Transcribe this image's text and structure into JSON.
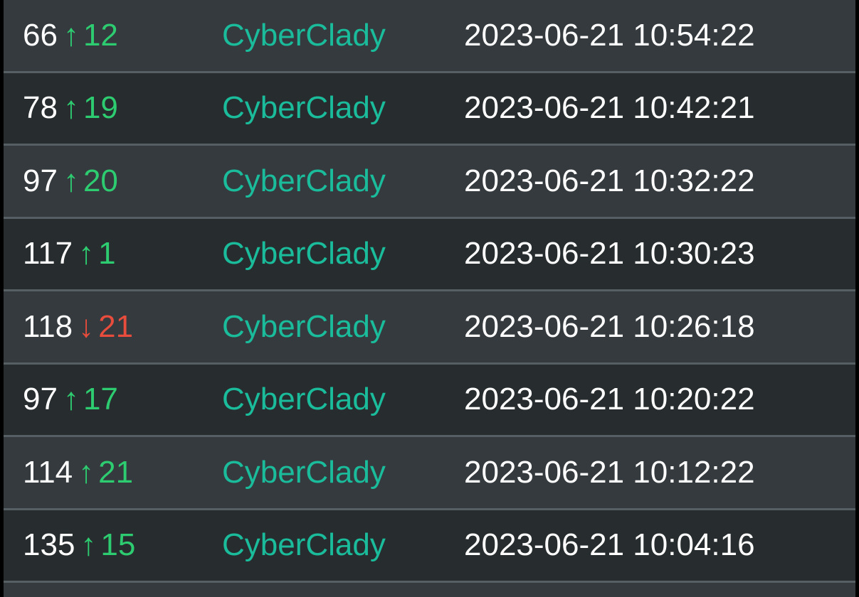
{
  "colors": {
    "up": "#2ecc71",
    "down": "#e74c3c",
    "name": "#1abc9c",
    "row_light": "#343a3d",
    "row_dark": "#272d2e"
  },
  "rows": [
    {
      "score": "66",
      "direction": "up",
      "arrow": "↑",
      "delta": "12",
      "name": "CyberClady",
      "date": "2023-06-21 10:54:22"
    },
    {
      "score": "78",
      "direction": "up",
      "arrow": "↑",
      "delta": "19",
      "name": "CyberClady",
      "date": "2023-06-21 10:42:21"
    },
    {
      "score": "97",
      "direction": "up",
      "arrow": "↑",
      "delta": "20",
      "name": "CyberClady",
      "date": "2023-06-21 10:32:22"
    },
    {
      "score": "117",
      "direction": "up",
      "arrow": "↑",
      "delta": "1",
      "name": "CyberClady",
      "date": "2023-06-21 10:30:23"
    },
    {
      "score": "118",
      "direction": "down",
      "arrow": "↓",
      "delta": "21",
      "name": "CyberClady",
      "date": "2023-06-21 10:26:18"
    },
    {
      "score": "97",
      "direction": "up",
      "arrow": "↑",
      "delta": "17",
      "name": "CyberClady",
      "date": "2023-06-21 10:20:22"
    },
    {
      "score": "114",
      "direction": "up",
      "arrow": "↑",
      "delta": "21",
      "name": "CyberClady",
      "date": "2023-06-21 10:12:22"
    },
    {
      "score": "135",
      "direction": "up",
      "arrow": "↑",
      "delta": "15",
      "name": "CyberClady",
      "date": "2023-06-21 10:04:16"
    }
  ]
}
